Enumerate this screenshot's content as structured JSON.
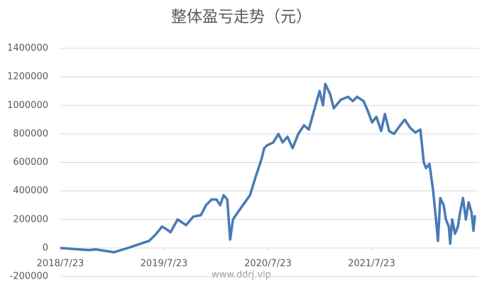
{
  "chart_data": {
    "type": "line",
    "title": "整体盈亏走势（元）",
    "annotations": [
      "www.ddrj.vip"
    ],
    "x": [
      "2018/7/23",
      "2018/10/31",
      "2018/11/25",
      "2019/1/27",
      "2019/3/18",
      "2019/6/1",
      "2019/6/26",
      "2019/7/16",
      "2019/8/2",
      "2019/8/15",
      "2019/9/9",
      "2019/10/9",
      "2019/11/3",
      "2019/11/30",
      "2019/12/18",
      "2020/1/7",
      "2020/1/24",
      "2020/2/6",
      "2020/2/18",
      "2020/3/2",
      "2020/3/12",
      "2020/3/22",
      "2020/4/8",
      "2020/5/3",
      "2020/5/21",
      "2020/6/10",
      "2020/6/30",
      "2020/7/10",
      "2020/7/20",
      "2020/8/11",
      "2020/8/29",
      "2020/9/13",
      "2020/9/30",
      "2020/10/18",
      "2020/11/7",
      "2020/11/27",
      "2020/12/14",
      "2021/1/1",
      "2021/1/21",
      "2021/2/2",
      "2021/2/10",
      "2021/2/27",
      "2021/3/12",
      "2021/4/6",
      "2021/5/1",
      "2021/5/18",
      "2021/6/2",
      "2021/6/25",
      "2021/7/10",
      "2021/7/25",
      "2021/8/9",
      "2021/8/26",
      "2021/9/8",
      "2021/9/23",
      "2021/10/10",
      "2021/10/28",
      "2021/11/17",
      "2021/12/7",
      "2021/12/24",
      "2022/1/11",
      "2022/1/23",
      "2022/1/31",
      "2022/2/12",
      "2022/2/25",
      "2022/3/7",
      "2022/3/14",
      "2022/3/22",
      "2022/4/3",
      "2022/4/11",
      "2022/4/21",
      "2022/4/26",
      "2022/5/3",
      "2022/5/13",
      "2022/5/23",
      "2022/5/31",
      "2022/6/10",
      "2022/6/20",
      "2022/6/30",
      "2022/7/10",
      "2022/7/17",
      "2022/7/22"
    ],
    "series": [
      {
        "color": "#4a7ab5",
        "values": [
          0,
          -15000,
          -10000,
          -30000,
          0,
          50000,
          100000,
          150000,
          130000,
          110000,
          200000,
          160000,
          220000,
          230000,
          300000,
          340000,
          340000,
          300000,
          370000,
          340000,
          60000,
          200000,
          250000,
          320000,
          370000,
          500000,
          620000,
          700000,
          720000,
          740000,
          800000,
          740000,
          780000,
          700000,
          800000,
          860000,
          830000,
          960000,
          1100000,
          1000000,
          1150000,
          1080000,
          980000,
          1040000,
          1060000,
          1030000,
          1060000,
          1030000,
          960000,
          880000,
          920000,
          820000,
          940000,
          820000,
          800000,
          850000,
          900000,
          840000,
          810000,
          830000,
          600000,
          560000,
          590000,
          400000,
          200000,
          50000,
          350000,
          300000,
          200000,
          150000,
          30000,
          200000,
          100000,
          150000,
          250000,
          350000,
          200000,
          320000,
          250000,
          120000,
          230000
        ]
      }
    ],
    "xlim": [
      "2018/7/23",
      "2022/7/22"
    ],
    "xticks": [
      "2018/7/23",
      "2019/7/23",
      "2020/7/23",
      "2021/7/23"
    ],
    "ylim": [
      -200000,
      1400000
    ],
    "yticks": [
      -200000,
      0,
      200000,
      400000,
      600000,
      800000,
      1000000,
      1200000,
      1400000
    ],
    "grid": true
  }
}
